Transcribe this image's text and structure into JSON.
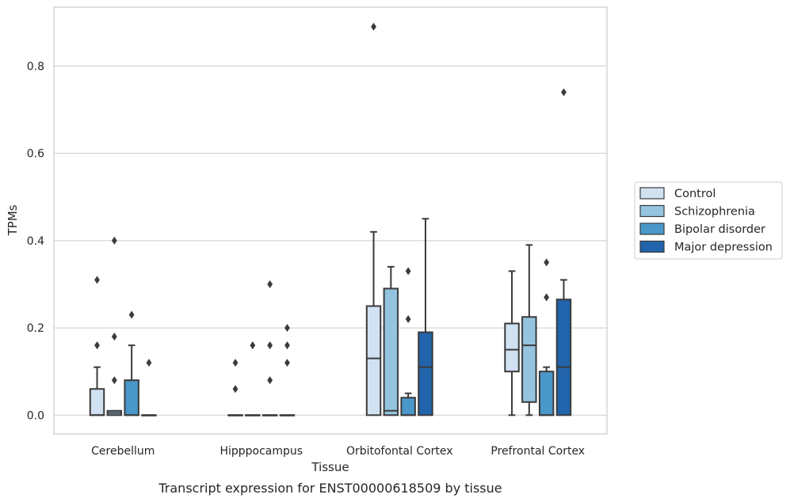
{
  "caption": "Transcript expression for ENST00000618509 by tissue",
  "chart_data": {
    "type": "box",
    "xlabel": "Tissue",
    "ylabel": "TPMs",
    "ylim": [
      -0.043,
      0.935
    ],
    "yticks": [
      "0.0",
      "0.2",
      "0.4",
      "0.6",
      "0.8"
    ],
    "ytick_values": [
      0.0,
      0.2,
      0.4,
      0.6,
      0.8
    ],
    "grid": true,
    "legend_position": "right",
    "categories": [
      "Cerebellum",
      "Hipppocampus",
      "Orbitofontal Cortex",
      "Prefrontal Cortex"
    ],
    "series": [
      {
        "name": "Control",
        "color": "#d0e1f2",
        "boxes": [
          {
            "q1": 0.0,
            "median": 0.0,
            "q3": 0.06,
            "whislo": 0.0,
            "whishi": 0.11,
            "fliers": [
              0.31,
              0.16
            ]
          },
          {
            "q1": 0.0,
            "median": 0.0,
            "q3": 0.0,
            "whislo": 0.0,
            "whishi": 0.0,
            "fliers": [
              0.12,
              0.06
            ]
          },
          {
            "q1": 0.0,
            "median": 0.13,
            "q3": 0.25,
            "whislo": 0.0,
            "whishi": 0.42,
            "fliers": [
              0.89
            ]
          },
          {
            "q1": 0.1,
            "median": 0.15,
            "q3": 0.21,
            "whislo": 0.0,
            "whishi": 0.33,
            "fliers": []
          }
        ]
      },
      {
        "name": "Schizophrenia",
        "color": "#94c4df",
        "boxes": [
          {
            "q1": 0.0,
            "median": 0.005,
            "q3": 0.01,
            "whislo": 0.0,
            "whishi": 0.01,
            "fliers": [
              0.4,
              0.18,
              0.08
            ]
          },
          {
            "q1": 0.0,
            "median": 0.0,
            "q3": 0.0,
            "whislo": 0.0,
            "whishi": 0.0,
            "fliers": [
              0.16
            ]
          },
          {
            "q1": 0.0,
            "median": 0.01,
            "q3": 0.29,
            "whislo": 0.0,
            "whishi": 0.34,
            "fliers": []
          },
          {
            "q1": 0.03,
            "median": 0.16,
            "q3": 0.225,
            "whislo": 0.0,
            "whishi": 0.39,
            "fliers": []
          }
        ]
      },
      {
        "name": "Bipolar disorder",
        "color": "#4a98c9",
        "boxes": [
          {
            "q1": 0.0,
            "median": 0.0,
            "q3": 0.08,
            "whislo": 0.0,
            "whishi": 0.16,
            "fliers": [
              0.23
            ]
          },
          {
            "q1": 0.0,
            "median": 0.0,
            "q3": 0.0,
            "whislo": 0.0,
            "whishi": 0.0,
            "fliers": [
              0.3,
              0.16,
              0.08
            ]
          },
          {
            "q1": 0.0,
            "median": 0.0,
            "q3": 0.04,
            "whislo": 0.0,
            "whishi": 0.05,
            "fliers": [
              0.33,
              0.22
            ]
          },
          {
            "q1": 0.0,
            "median": 0.0,
            "q3": 0.1,
            "whislo": 0.0,
            "whishi": 0.11,
            "fliers": [
              0.35,
              0.27
            ]
          }
        ]
      },
      {
        "name": "Major depression",
        "color": "#2164ab",
        "boxes": [
          {
            "q1": 0.0,
            "median": 0.0,
            "q3": 0.0,
            "whislo": 0.0,
            "whishi": 0.0,
            "fliers": [
              0.12
            ]
          },
          {
            "q1": 0.0,
            "median": 0.0,
            "q3": 0.0,
            "whislo": 0.0,
            "whishi": 0.0,
            "fliers": [
              0.2,
              0.16,
              0.12
            ]
          },
          {
            "q1": 0.0,
            "median": 0.11,
            "q3": 0.19,
            "whislo": 0.0,
            "whishi": 0.45,
            "fliers": []
          },
          {
            "q1": 0.0,
            "median": 0.11,
            "q3": 0.265,
            "whislo": 0.0,
            "whishi": 0.31,
            "fliers": [
              0.74
            ]
          }
        ]
      }
    ]
  }
}
